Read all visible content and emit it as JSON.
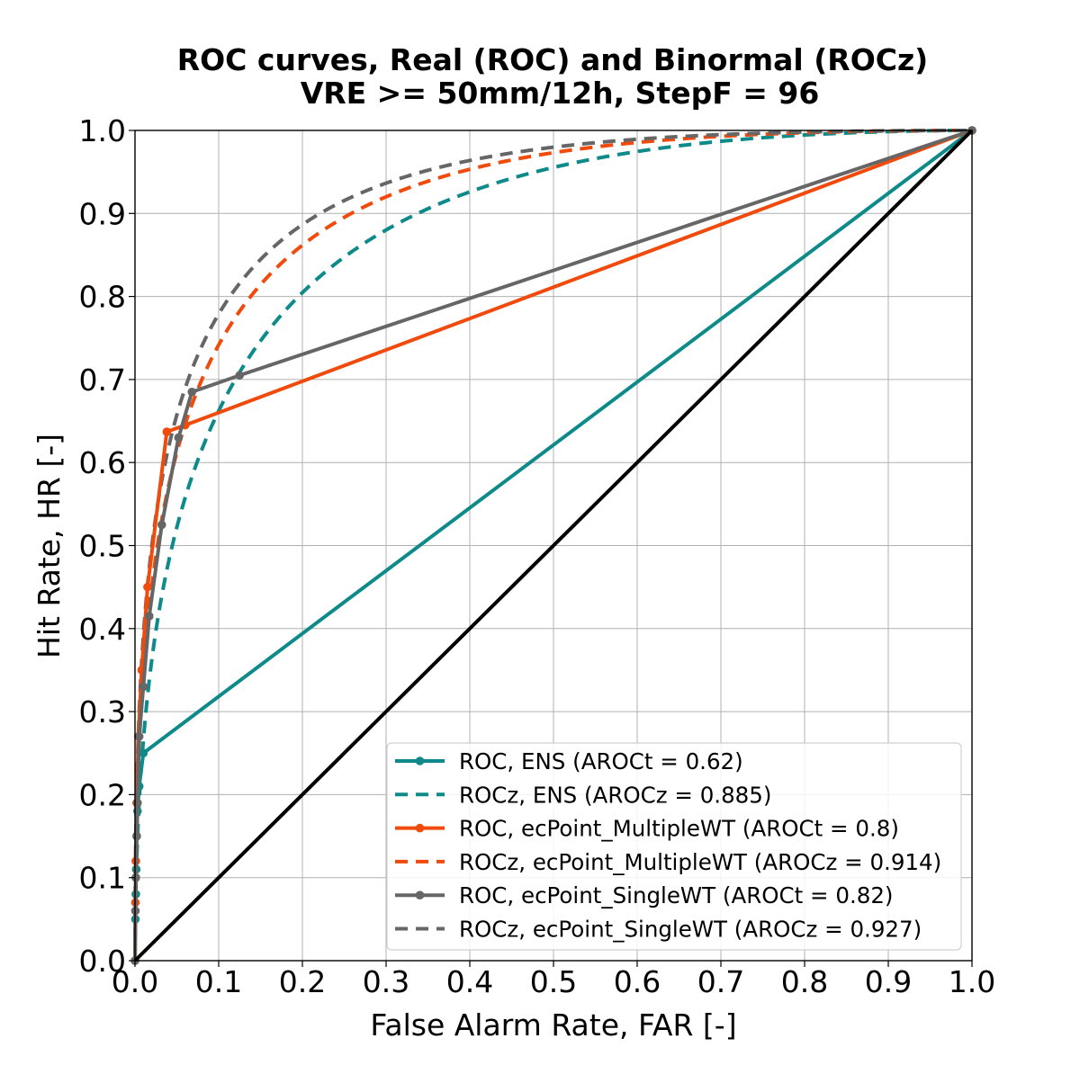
{
  "chart_data": {
    "type": "line",
    "title": "ROC curves, Real (ROC) and Binormal (ROCz)",
    "subtitle": "VRE >= 50mm/12h, StepF = 96",
    "xlabel": "False Alarm Rate, FAR [-]",
    "ylabel": "Hit Rate, HR [-]",
    "xlim": [
      0,
      1
    ],
    "ylim": [
      0,
      1
    ],
    "x_ticks": [
      "0.0",
      "0.1",
      "0.2",
      "0.3",
      "0.4",
      "0.5",
      "0.6",
      "0.7",
      "0.8",
      "0.9",
      "1.0"
    ],
    "y_ticks": [
      "0.0",
      "0.1",
      "0.2",
      "0.3",
      "0.4",
      "0.5",
      "0.6",
      "0.7",
      "0.8",
      "0.9",
      "1.0"
    ],
    "grid": true,
    "legend_position": "lower-right",
    "diagonal": {
      "x": [
        0,
        1
      ],
      "y": [
        0,
        1
      ],
      "color": "#000000"
    },
    "series": [
      {
        "name": "ROC, ENS (AROCt = 0.62)",
        "style": "solid-marker",
        "color": "#0e8a8a",
        "x": [
          0,
          0.0005,
          0.001,
          0.0015,
          0.002,
          0.003,
          0.005,
          0.01,
          1.0
        ],
        "y": [
          0,
          0.05,
          0.08,
          0.11,
          0.15,
          0.18,
          0.21,
          0.25,
          1.0
        ]
      },
      {
        "name": "ROCz, ENS (AROCz = 0.885)",
        "style": "dashed",
        "color": "#0e8a8a",
        "binormal": {
          "a": 1.7,
          "b": 1.0
        }
      },
      {
        "name": "ROC, ecPoint_MultipleWT (AROCt = 0.8)",
        "style": "solid-marker",
        "color": "#f04a0c",
        "x": [
          0,
          0.0005,
          0.001,
          0.002,
          0.004,
          0.008,
          0.015,
          0.038,
          0.06,
          1.0
        ],
        "y": [
          0,
          0.07,
          0.12,
          0.19,
          0.27,
          0.35,
          0.45,
          0.637,
          0.645,
          1.0
        ]
      },
      {
        "name": "ROCz, ecPoint_MultipleWT (AROCz = 0.914)",
        "style": "dashed",
        "color": "#f04a0c",
        "binormal": {
          "a": 1.93,
          "b": 1.0
        }
      },
      {
        "name": "ROC, ecPoint_SingleWT (AROCt = 0.82)",
        "style": "solid-marker",
        "color": "#666666",
        "x": [
          0,
          0.0005,
          0.001,
          0.002,
          0.003,
          0.005,
          0.01,
          0.017,
          0.032,
          0.052,
          0.068,
          0.125,
          1.0
        ],
        "y": [
          0,
          0.06,
          0.1,
          0.15,
          0.19,
          0.27,
          0.33,
          0.415,
          0.525,
          0.63,
          0.685,
          0.705,
          1.0
        ]
      },
      {
        "name": "ROCz, ecPoint_SingleWT (AROCz = 0.927)",
        "style": "dashed",
        "color": "#666666",
        "binormal": {
          "a": 2.05,
          "b": 1.0
        }
      }
    ]
  }
}
